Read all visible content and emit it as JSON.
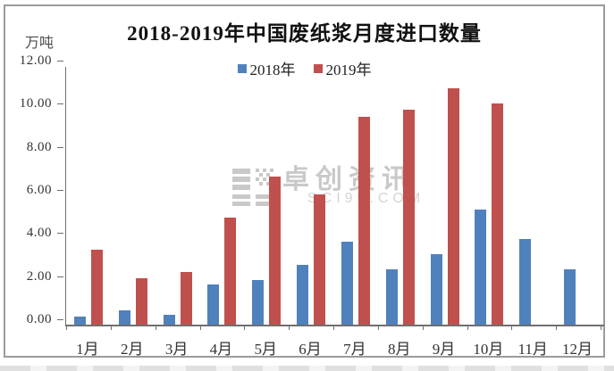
{
  "chart_data": {
    "type": "bar",
    "title": "2018-2019年中国废纸浆月度进口数量",
    "unit_label": "万吨",
    "categories": [
      "1月",
      "2月",
      "3月",
      "4月",
      "5月",
      "6月",
      "7月",
      "8月",
      "9月",
      "10月",
      "11月",
      "12月"
    ],
    "series": [
      {
        "name": "2018年",
        "color": "#4F81BD",
        "values": [
          0.4,
          0.7,
          0.5,
          1.9,
          2.1,
          2.8,
          3.9,
          2.6,
          3.3,
          5.4,
          4.0,
          2.6
        ]
      },
      {
        "name": "2019年",
        "color": "#C0504D",
        "values": [
          3.5,
          2.2,
          2.5,
          5.0,
          6.9,
          6.1,
          9.7,
          10.0,
          11.0,
          10.3,
          null,
          null
        ]
      }
    ],
    "ylim": [
      0,
      12
    ],
    "y_tick_labels": [
      "12.00",
      "10.00",
      "8.00",
      "6.00",
      "4.00",
      "2.00",
      "0.00"
    ],
    "grid": false,
    "legend_position": "top-center",
    "axis_color": "#6f6f6f",
    "watermark": {
      "logo": "sci-grid-logo",
      "text": "卓创资讯",
      "subtext": "SCI99.COM"
    }
  }
}
